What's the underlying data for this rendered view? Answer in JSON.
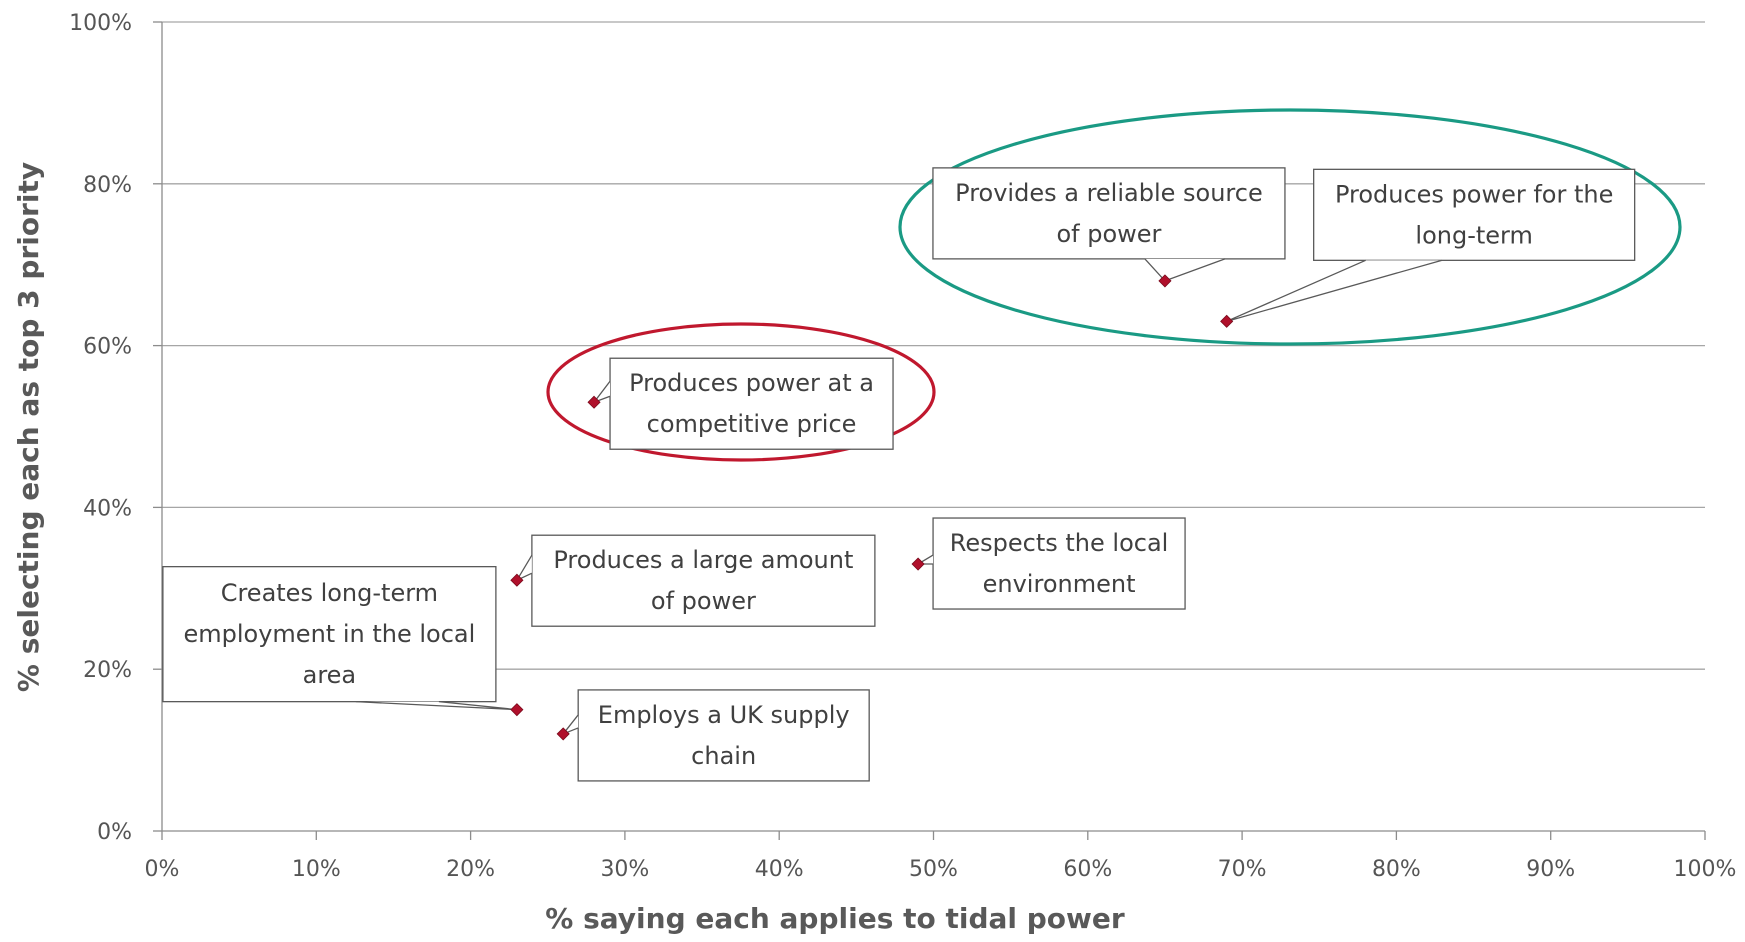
{
  "chart_data": {
    "type": "scatter",
    "xlabel": "% saying each applies to tidal power",
    "ylabel": "% selecting each as top 3 priority",
    "xlim": [
      0,
      100
    ],
    "ylim": [
      0,
      100
    ],
    "x_ticks": [
      "0%",
      "10%",
      "20%",
      "30%",
      "40%",
      "50%",
      "60%",
      "70%",
      "80%",
      "90%",
      "100%"
    ],
    "y_ticks": [
      "0%",
      "20%",
      "40%",
      "60%",
      "80%",
      "100%"
    ],
    "grid": "horizontal",
    "marker_color": "#B0102B",
    "points": [
      {
        "label": [
          "Provides a reliable source",
          "of power"
        ],
        "x": 65,
        "y": 68
      },
      {
        "label": [
          "Produces power for the",
          "long-term"
        ],
        "x": 69,
        "y": 63
      },
      {
        "label": [
          "Produces power at a",
          "competitive price"
        ],
        "x": 28,
        "y": 53
      },
      {
        "label": [
          "Produces a large amount",
          "of power"
        ],
        "x": 23,
        "y": 31
      },
      {
        "label": [
          "Respects the local",
          "environment"
        ],
        "x": 49,
        "y": 33
      },
      {
        "label": [
          "Creates long-term",
          "employment in the local",
          "area"
        ],
        "x": 23,
        "y": 15
      },
      {
        "label": [
          "Employs a UK supply",
          "chain"
        ],
        "x": 26,
        "y": 12
      }
    ],
    "highlights": [
      {
        "color": "#1A9A84",
        "covers": [
          "Provides a reliable source of power",
          "Produces power for the long-term"
        ]
      },
      {
        "color": "#C0182E",
        "covers": [
          "Produces power at a competitive price"
        ]
      }
    ]
  }
}
